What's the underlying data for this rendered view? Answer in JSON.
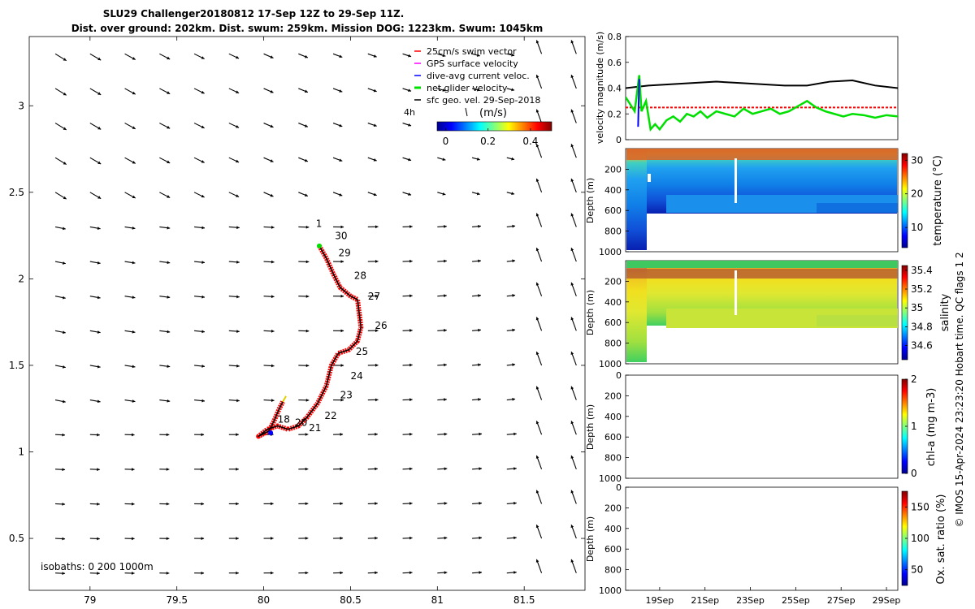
{
  "title_line1": "SLU29 Challenger20180812 17-Sep 12Z to 29-Sep 11Z.",
  "title_line2": "Dist. over ground: 202km. Dist. swum: 259km. Mission DOG: 1223km. Swum: 1045km",
  "credit": "© IMOS 15-Apr-2024 23:23:20 Hobart time. QC flags 1  2",
  "colors": {
    "swim": "#ff0000",
    "gps": "#ff00ff",
    "dive": "#0000ff",
    "net": "#00e000",
    "sfc": "#000000"
  },
  "chart_data": [
    {
      "id": "map",
      "type": "scatter",
      "xlim": [
        78.65,
        81.85
      ],
      "ylim": [
        0.2,
        3.4
      ],
      "x_ticks": [
        "79",
        "79.5",
        "80",
        "80.5",
        "81",
        "81.5"
      ],
      "x_tick_values": [
        79,
        79.5,
        80,
        80.5,
        81,
        81.5
      ],
      "y_ticks": [
        "0.5",
        "1",
        "1.5",
        "2",
        "2.5",
        "3"
      ],
      "y_tick_values": [
        0.5,
        1,
        1.5,
        2,
        2.5,
        3
      ],
      "legend": [
        {
          "label": "25cm/s swim vector",
          "color": "#ff0000"
        },
        {
          "label": "GPS surface velocity",
          "color": "#ff00ff"
        },
        {
          "label": "dive-avg current veloc.",
          "color": "#0000ff"
        },
        {
          "label": "net glider velocity",
          "color": "#00e000"
        },
        {
          "label": "sfc geo. vel. 29-Sep-2018",
          "color": "#000000"
        }
      ],
      "colorbar": {
        "label": "(m/s)",
        "ticks": [
          "0",
          "0.2",
          "0.4"
        ],
        "tick_values": [
          0,
          0.2,
          0.4
        ],
        "range": [
          -0.04,
          0.5
        ],
        "extra_label": "4h"
      },
      "isobaths_label": "isobaths: 0    200   1000m",
      "track": [
        [
          80.32,
          2.19
        ],
        [
          80.36,
          2.12
        ],
        [
          80.4,
          2.03
        ],
        [
          80.44,
          1.95
        ],
        [
          80.5,
          1.9
        ],
        [
          80.54,
          1.88
        ],
        [
          80.55,
          1.8
        ],
        [
          80.56,
          1.72
        ],
        [
          80.54,
          1.64
        ],
        [
          80.49,
          1.59
        ],
        [
          80.43,
          1.57
        ],
        [
          80.39,
          1.5
        ],
        [
          80.36,
          1.38
        ],
        [
          80.31,
          1.28
        ],
        [
          80.25,
          1.2
        ],
        [
          80.2,
          1.15
        ],
        [
          80.14,
          1.13
        ],
        [
          80.08,
          1.15
        ],
        [
          80.02,
          1.13
        ],
        [
          79.97,
          1.09
        ],
        [
          80.03,
          1.12
        ],
        [
          80.06,
          1.18
        ],
        [
          80.09,
          1.25
        ],
        [
          80.11,
          1.29
        ]
      ],
      "day_labels": [
        {
          "text": "1",
          "x": 80.3,
          "y": 2.3
        },
        {
          "text": "30",
          "x": 80.41,
          "y": 2.23
        },
        {
          "text": "29",
          "x": 80.43,
          "y": 2.13
        },
        {
          "text": "28",
          "x": 80.52,
          "y": 2.0
        },
        {
          "text": "27",
          "x": 80.6,
          "y": 1.88
        },
        {
          "text": "26",
          "x": 80.64,
          "y": 1.71
        },
        {
          "text": "25",
          "x": 80.53,
          "y": 1.56
        },
        {
          "text": "24",
          "x": 80.5,
          "y": 1.42
        },
        {
          "text": "23",
          "x": 80.44,
          "y": 1.31
        },
        {
          "text": "22",
          "x": 80.35,
          "y": 1.19
        },
        {
          "text": "18",
          "x": 80.08,
          "y": 1.17
        },
        {
          "text": "20",
          "x": 80.18,
          "y": 1.15
        },
        {
          "text": "21",
          "x": 80.26,
          "y": 1.12
        }
      ]
    },
    {
      "id": "velocity",
      "type": "line",
      "ylabel": "velocity magnitude (m/s)",
      "ylim": [
        0,
        0.8
      ],
      "y_ticks": [
        "0",
        "0.2",
        "0.4",
        "0.6",
        "0.8"
      ],
      "y_tick_values": [
        0,
        0.2,
        0.4,
        0.6,
        0.8
      ],
      "series": [
        {
          "name": "sfc geo. vel.",
          "color": "#000000",
          "values": [
            [
              0,
              0.4
            ],
            [
              1,
              0.42
            ],
            [
              2,
              0.43
            ],
            [
              3,
              0.44
            ],
            [
              4,
              0.45
            ],
            [
              5,
              0.44
            ],
            [
              6,
              0.43
            ],
            [
              7,
              0.42
            ],
            [
              8,
              0.42
            ],
            [
              9,
              0.45
            ],
            [
              10,
              0.46
            ],
            [
              11,
              0.42
            ],
            [
              12,
              0.4
            ]
          ]
        },
        {
          "name": "swim 25cm/s",
          "color": "#ff0000",
          "values": [
            [
              0,
              0.25
            ],
            [
              12,
              0.25
            ]
          ]
        },
        {
          "name": "net glider velocity",
          "color": "#00e000",
          "values": [
            [
              0,
              0.33
            ],
            [
              0.4,
              0.22
            ],
            [
              0.6,
              0.5
            ],
            [
              0.7,
              0.22
            ],
            [
              0.9,
              0.3
            ],
            [
              1.1,
              0.08
            ],
            [
              1.3,
              0.12
            ],
            [
              1.5,
              0.08
            ],
            [
              1.8,
              0.15
            ],
            [
              2.1,
              0.18
            ],
            [
              2.4,
              0.14
            ],
            [
              2.7,
              0.2
            ],
            [
              3.0,
              0.18
            ],
            [
              3.3,
              0.22
            ],
            [
              3.6,
              0.17
            ],
            [
              4.0,
              0.22
            ],
            [
              4.4,
              0.2
            ],
            [
              4.8,
              0.18
            ],
            [
              5.2,
              0.24
            ],
            [
              5.6,
              0.2
            ],
            [
              6.0,
              0.22
            ],
            [
              6.4,
              0.24
            ],
            [
              6.8,
              0.2
            ],
            [
              7.2,
              0.22
            ],
            [
              7.6,
              0.26
            ],
            [
              8.0,
              0.3
            ],
            [
              8.4,
              0.25
            ],
            [
              8.8,
              0.22
            ],
            [
              9.2,
              0.2
            ],
            [
              9.6,
              0.18
            ],
            [
              10.0,
              0.2
            ],
            [
              10.5,
              0.19
            ],
            [
              11.0,
              0.17
            ],
            [
              11.5,
              0.19
            ],
            [
              12,
              0.18
            ]
          ]
        },
        {
          "name": "dive-avg current",
          "color": "#0000ff",
          "values": [
            [
              0.55,
              0.1
            ],
            [
              0.6,
              0.47
            ]
          ]
        }
      ]
    },
    {
      "id": "temperature",
      "type": "heatmap",
      "ylabel": "Depth (m)",
      "clabel": "temperature (°C)",
      "ylim": [
        0,
        1000
      ],
      "y_ticks": [
        "200",
        "400",
        "600",
        "800",
        "1000"
      ],
      "y_tick_values": [
        200,
        400,
        600,
        800,
        1000
      ],
      "clim": [
        4,
        32
      ],
      "cticks": [
        "10",
        "20",
        "30"
      ],
      "ctick_values": [
        10,
        20,
        30
      ]
    },
    {
      "id": "salinity",
      "type": "heatmap",
      "ylabel": "Depth (m)",
      "clabel": "salinity",
      "ylim": [
        0,
        1000
      ],
      "y_ticks": [
        "200",
        "400",
        "600",
        "800",
        "1000"
      ],
      "y_tick_values": [
        200,
        400,
        600,
        800,
        1000
      ],
      "clim": [
        34.45,
        35.45
      ],
      "cticks": [
        "34.6",
        "34.8",
        "35",
        "35.2",
        "35.4"
      ],
      "ctick_values": [
        34.6,
        34.8,
        35,
        35.2,
        35.4
      ]
    },
    {
      "id": "chla",
      "type": "heatmap",
      "ylabel": "Depth (m)",
      "clabel": "chl-a (mg m-3)",
      "ylim": [
        0,
        1000
      ],
      "y_ticks": [
        "0",
        "200",
        "400",
        "600",
        "800",
        "1000"
      ],
      "y_tick_values": [
        0,
        200,
        400,
        600,
        800,
        1000
      ],
      "clim": [
        0,
        2
      ],
      "cticks": [
        "0",
        "1",
        "2"
      ],
      "ctick_values": [
        0,
        1,
        2
      ]
    },
    {
      "id": "oxygen",
      "type": "heatmap",
      "ylabel": "Depth (m)",
      "clabel": "Ox. sat. ratio (%)",
      "ylim": [
        0,
        1000
      ],
      "y_ticks": [
        "0",
        "200",
        "400",
        "600",
        "800",
        "1000"
      ],
      "y_tick_values": [
        0,
        200,
        400,
        600,
        800,
        1000
      ],
      "clim": [
        25,
        175
      ],
      "cticks": [
        "50",
        "100",
        "150"
      ],
      "ctick_values": [
        50,
        100,
        150
      ],
      "x_ticks": [
        "19Sep",
        "21Sep",
        "23Sep",
        "25Sep",
        "27Sep",
        "29Sep"
      ],
      "x_tick_values": [
        1.5,
        3.5,
        5.5,
        7.5,
        9.5,
        11.5
      ],
      "xlim": [
        0,
        12
      ]
    }
  ]
}
